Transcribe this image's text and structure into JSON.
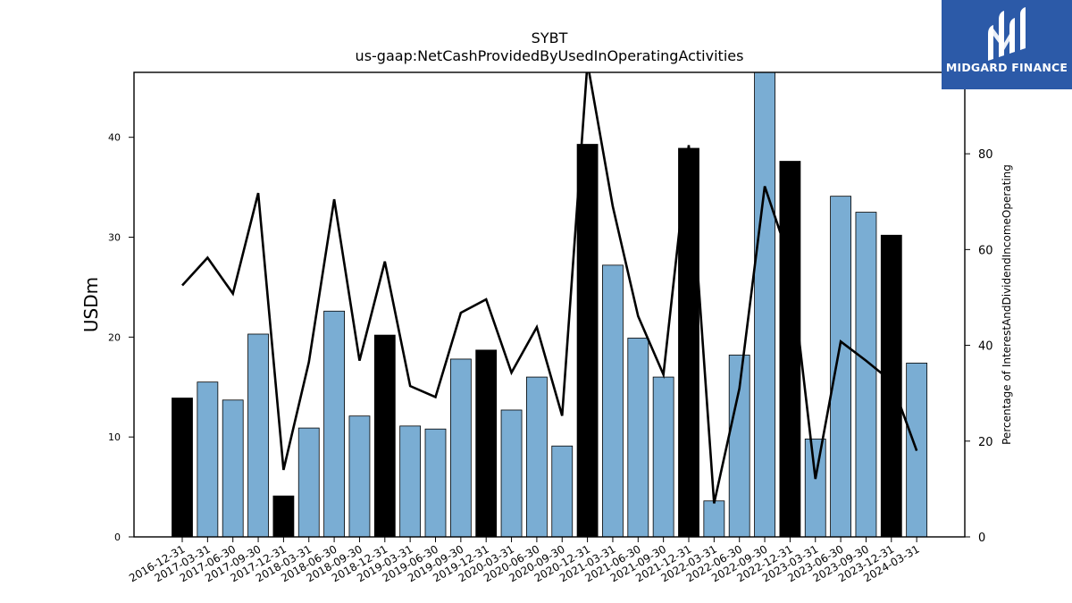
{
  "logo": {
    "text": "MIDGARD FINANCE",
    "icon": "midgard-m-logo-icon",
    "background": "#2c5aa8"
  },
  "colors": {
    "bar_default": "#7aadd3",
    "bar_highlight": "#000000",
    "line": "#000000"
  },
  "chart_data": {
    "type": "bar",
    "title": "SYBT",
    "subtitle": "us-gaap:NetCashProvidedByUsedInOperatingActivities",
    "ylabel": "USDm",
    "ylabel_right": "Percentage of InterestAndDividendIncomeOperating",
    "ylim": [
      0,
      46.5
    ],
    "ylim_right": [
      0,
      97
    ],
    "yticks": [
      0,
      10,
      20,
      30,
      40
    ],
    "yticks_right": [
      0,
      20,
      40,
      60,
      80
    ],
    "grid": false,
    "categories": [
      "2016-12-31",
      "2017-03-31",
      "2017-06-30",
      "2017-09-30",
      "2017-12-31",
      "2018-03-31",
      "2018-06-30",
      "2018-09-30",
      "2018-12-31",
      "2019-03-31",
      "2019-06-30",
      "2019-09-30",
      "2019-12-31",
      "2020-03-31",
      "2020-06-30",
      "2020-09-30",
      "2020-12-31",
      "2021-03-31",
      "2021-06-30",
      "2021-09-30",
      "2021-12-31",
      "2022-03-31",
      "2022-06-30",
      "2022-09-30",
      "2022-12-31",
      "2023-03-31",
      "2023-06-30",
      "2023-09-30",
      "2023-12-31",
      "2024-03-31"
    ],
    "series": [
      {
        "type": "bar",
        "axis": "left",
        "values": [
          13.9,
          15.5,
          13.7,
          20.3,
          4.1,
          10.9,
          22.6,
          12.1,
          20.2,
          11.1,
          10.8,
          17.8,
          18.7,
          12.7,
          16.0,
          9.1,
          39.3,
          27.2,
          19.9,
          16.0,
          38.9,
          3.6,
          18.2,
          46.6,
          37.6,
          9.8,
          34.1,
          32.5,
          30.2,
          17.4
        ],
        "highlight": [
          true,
          false,
          false,
          false,
          true,
          false,
          false,
          false,
          true,
          false,
          false,
          false,
          true,
          false,
          false,
          false,
          true,
          false,
          false,
          false,
          true,
          false,
          false,
          false,
          true,
          false,
          false,
          false,
          true,
          false
        ]
      },
      {
        "type": "line",
        "axis": "right",
        "values": [
          52.5,
          58.3,
          50.8,
          71.8,
          14.0,
          36.5,
          70.5,
          36.8,
          57.5,
          31.5,
          29.2,
          46.8,
          49.6,
          34.3,
          43.8,
          25.3,
          99,
          69.0,
          46.1,
          33.9,
          81.8,
          7.0,
          31.0,
          73.2,
          57.5,
          12.1,
          40.8,
          36.8,
          32.5,
          18.0
        ]
      }
    ]
  }
}
